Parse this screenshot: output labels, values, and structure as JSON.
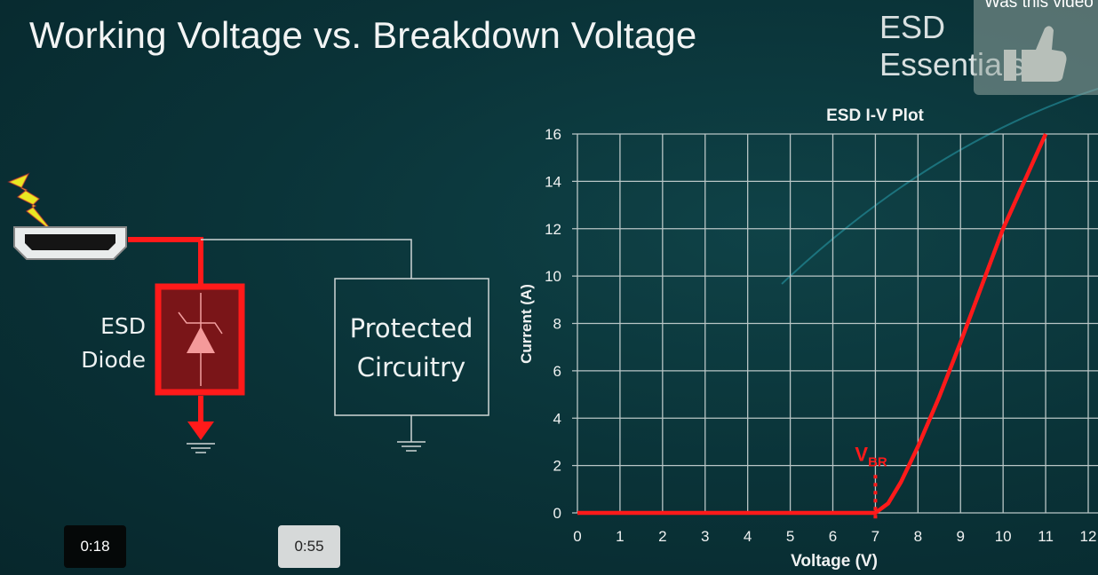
{
  "slide": {
    "title": "Working Voltage vs. Breakdown Voltage",
    "brand": "ESD Essentials",
    "diode_label_line1": "ESD",
    "diode_label_line2": "Diode",
    "protected_line1": "Protected",
    "protected_line2": "Circuitry"
  },
  "feedback": {
    "question": "Was this video",
    "icon": "thumbs-up-icon"
  },
  "player": {
    "current_time": "0:18",
    "hover_time": "0:55"
  },
  "colors": {
    "curve": "#ff1a1a",
    "diode_fill": "#7a1518",
    "grid": "#b9c6c6"
  },
  "chart_data": {
    "type": "line",
    "title": "ESD I-V Plot",
    "xlabel": "Voltage (V)",
    "ylabel": "Current (A)",
    "xlim": [
      0,
      12
    ],
    "ylim": [
      0,
      16
    ],
    "xticks": [
      "0",
      "1",
      "2",
      "3",
      "4",
      "5",
      "6",
      "7",
      "8",
      "9",
      "10",
      "11",
      "12"
    ],
    "yticks": [
      "0",
      "2",
      "4",
      "6",
      "8",
      "10",
      "12",
      "14",
      "16"
    ],
    "grid": true,
    "annotation": {
      "text": "V",
      "subscript": "BR",
      "x": 7
    },
    "series": [
      {
        "points": [
          [
            0,
            0
          ],
          [
            7,
            0
          ],
          [
            7.3,
            0.4
          ],
          [
            7.6,
            1.3
          ],
          [
            8,
            2.8
          ],
          [
            8.5,
            4.9
          ],
          [
            9,
            7.2
          ],
          [
            10,
            12
          ],
          [
            11,
            16
          ]
        ]
      }
    ]
  }
}
